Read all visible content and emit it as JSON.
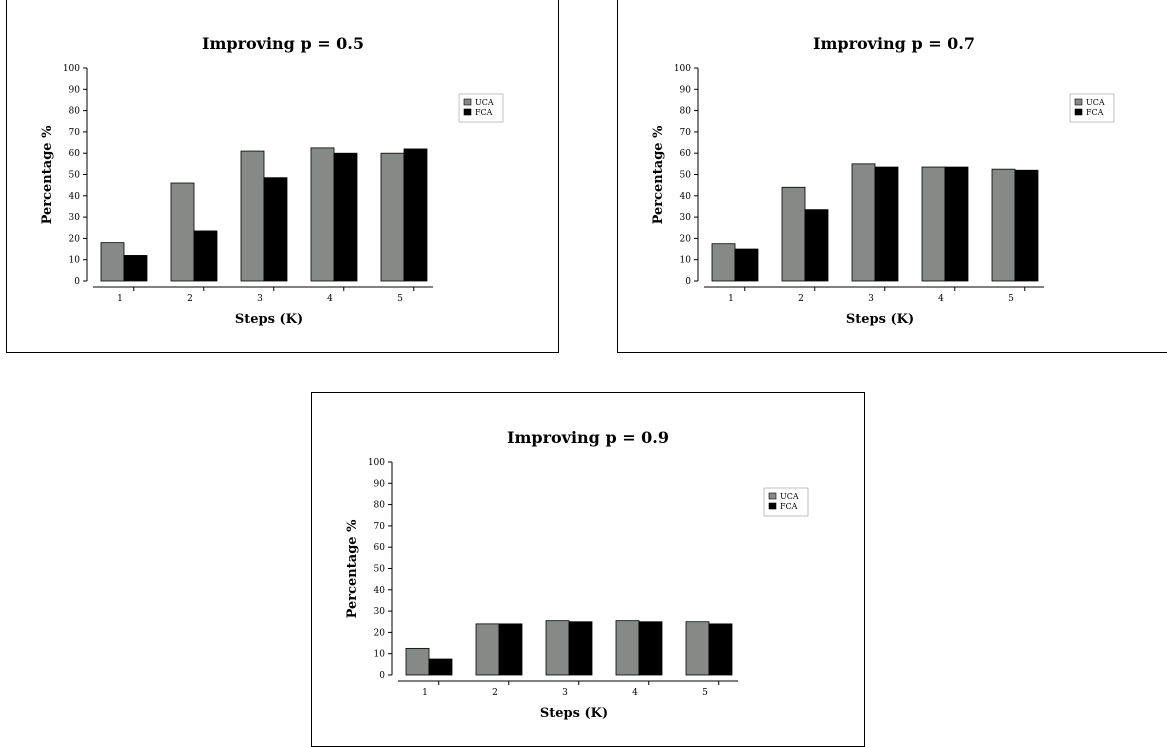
{
  "chart_data": [
    {
      "type": "bar",
      "title": "Improving p = 0.5",
      "xlabel": "Steps (K)",
      "ylabel": "Percentage %",
      "ylim": [
        0,
        100
      ],
      "yticks": [
        0,
        10,
        20,
        30,
        40,
        50,
        60,
        70,
        80,
        90,
        100
      ],
      "categories": [
        "1",
        "2",
        "3",
        "4",
        "5"
      ],
      "legend_position": "top-right",
      "series": [
        {
          "name": "UCA",
          "color": "#858a87",
          "values": [
            18,
            46,
            61,
            62.5,
            60
          ]
        },
        {
          "name": "FCA",
          "color": "#000000",
          "values": [
            12,
            23.5,
            48.5,
            60,
            62
          ]
        }
      ]
    },
    {
      "type": "bar",
      "title": "Improving p = 0.7",
      "xlabel": "Steps (K)",
      "ylabel": "Percentage %",
      "ylim": [
        0,
        100
      ],
      "yticks": [
        0,
        10,
        20,
        30,
        40,
        50,
        60,
        70,
        80,
        90,
        100
      ],
      "categories": [
        "1",
        "2",
        "3",
        "4",
        "5"
      ],
      "legend_position": "top-right",
      "series": [
        {
          "name": "UCA",
          "color": "#858a87",
          "values": [
            17.5,
            44,
            55,
            53.5,
            52.5
          ]
        },
        {
          "name": "FCA",
          "color": "#000000",
          "values": [
            15,
            33.5,
            53.5,
            53.5,
            52
          ]
        }
      ]
    },
    {
      "type": "bar",
      "title": "Improving p = 0.9",
      "xlabel": "Steps (K)",
      "ylabel": "Percentage %",
      "ylim": [
        0,
        100
      ],
      "yticks": [
        0,
        10,
        20,
        30,
        40,
        50,
        60,
        70,
        80,
        90,
        100
      ],
      "categories": [
        "1",
        "2",
        "3",
        "4",
        "5"
      ],
      "legend_position": "top-right",
      "series": [
        {
          "name": "UCA",
          "color": "#858a87",
          "values": [
            12.5,
            24,
            25.5,
            25.5,
            25
          ]
        },
        {
          "name": "FCA",
          "color": "#000000",
          "values": [
            7.5,
            24,
            25,
            25,
            24
          ]
        }
      ]
    }
  ]
}
